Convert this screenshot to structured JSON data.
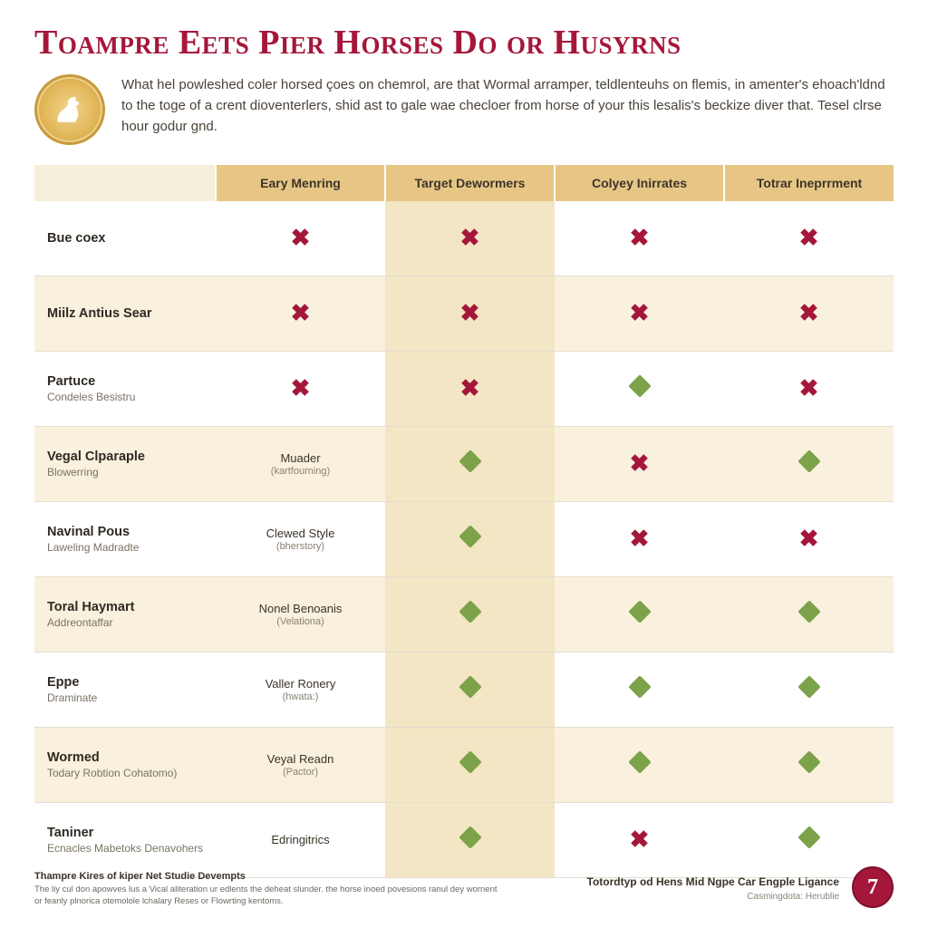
{
  "colors": {
    "maroon": "#a5173a",
    "gold": "#e0bc7a",
    "green": "#7ca24a",
    "row_stripe": "#f9f1de",
    "col_highlight": "#f3e6c4",
    "header_gold": "#e7c685",
    "border": "#e4ddd0",
    "page_bg": "#ffffff"
  },
  "typography": {
    "title_fontsize": 38,
    "title_family": "Georgia serif small-caps",
    "body_fontsize": 15,
    "table_header_fontsize": 14,
    "row_title_fontsize": 14.5,
    "row_sub_fontsize": 12,
    "footer_small_fontsize": 9.5
  },
  "title": "Toampre Eets Pier Horses Do or Husyrns",
  "intro": "What hel powleshed coler horsed çoes on chemrol, are that Wormal arramper, teldlenteuhs on flemis, in amenter's ehoach'ldnd to the toge of a crent dioventerlers, shid ast to gale wae checloer from horse of your this lesalis's beckize diver that. Tesel clrse hour godur gnd.",
  "table": {
    "type": "table",
    "highlight_column_index": 1,
    "columns": [
      "Eary Menring",
      "Target Dewormers",
      "Colyey Inirrates",
      "Totrar Ineprrment"
    ],
    "column_colors": {
      "header_bg": "#e7c685",
      "highlight_bg": "#f3e6c4",
      "stripe_bg": "#f9f1de"
    },
    "mark_legend": {
      "cross": {
        "glyph": "✖",
        "color": "#a5173a"
      },
      "diamond": {
        "shape": "diamond",
        "color": "#7ca24a"
      }
    },
    "rows": [
      {
        "label": "Bue coex",
        "sub": "",
        "cells": [
          {
            "mark": "cross"
          },
          {
            "mark": "cross"
          },
          {
            "mark": "cross"
          },
          {
            "mark": "cross"
          }
        ]
      },
      {
        "label": "Miilz Antius Sear",
        "sub": "",
        "cells": [
          {
            "mark": "cross"
          },
          {
            "mark": "cross"
          },
          {
            "mark": "cross"
          },
          {
            "mark": "cross"
          }
        ]
      },
      {
        "label": "Partuce",
        "sub": "Condeles Besistru",
        "cells": [
          {
            "mark": "cross"
          },
          {
            "mark": "cross"
          },
          {
            "mark": "diamond"
          },
          {
            "mark": "cross"
          }
        ]
      },
      {
        "label": "Vegal Clparaple",
        "sub": "Blowerring",
        "cells": [
          {
            "text": "Muader",
            "subtext": "(kartfourning)"
          },
          {
            "mark": "diamond"
          },
          {
            "mark": "cross"
          },
          {
            "mark": "diamond"
          }
        ]
      },
      {
        "label": "Navinal Pous",
        "sub": "Laweling Madradte",
        "cells": [
          {
            "text": "Clewed Style",
            "subtext": "(bherstory)"
          },
          {
            "mark": "diamond"
          },
          {
            "mark": "cross"
          },
          {
            "mark": "cross"
          }
        ]
      },
      {
        "label": "Toral Haymart",
        "sub": "Addreontaffar",
        "cells": [
          {
            "text": "Nonel Benoanis",
            "subtext": "(Velationa)"
          },
          {
            "mark": "diamond"
          },
          {
            "mark": "diamond"
          },
          {
            "mark": "diamond"
          }
        ]
      },
      {
        "label": "Eppe",
        "sub": "Draminate",
        "cells": [
          {
            "text": "Valler Ronery",
            "subtext": "(hwata:)"
          },
          {
            "mark": "diamond"
          },
          {
            "mark": "diamond"
          },
          {
            "mark": "diamond"
          }
        ]
      },
      {
        "label": "Wormed",
        "sub": "Todary Robtion Cohatomo)",
        "cells": [
          {
            "text": "Veyal Readn",
            "subtext": "(Pactor)"
          },
          {
            "mark": "diamond"
          },
          {
            "mark": "diamond"
          },
          {
            "mark": "diamond"
          }
        ]
      },
      {
        "label": "Taniner",
        "sub": "Ecnacles Mabetoks Denavohers",
        "cells": [
          {
            "text": "Edringitrics",
            "subtext": ""
          },
          {
            "mark": "diamond"
          },
          {
            "mark": "cross"
          },
          {
            "mark": "diamond"
          }
        ]
      }
    ]
  },
  "footer": {
    "left_title": "Thampre Kires of kiper Net Studie Devempts",
    "left_body": "The liy cul don apowves lus a Vical aliteration ur edlents the deheat slunder. the horse inoed povesions ranul dey wornent or feanly plnorica otemolole lchalary Reses or Flowrting kentoms.",
    "right_title": "Totordtyp od Hens Mid Ngpe Car Engple Ligance",
    "right_sub": "Casmingdota: Herublie",
    "page_number": "7"
  }
}
